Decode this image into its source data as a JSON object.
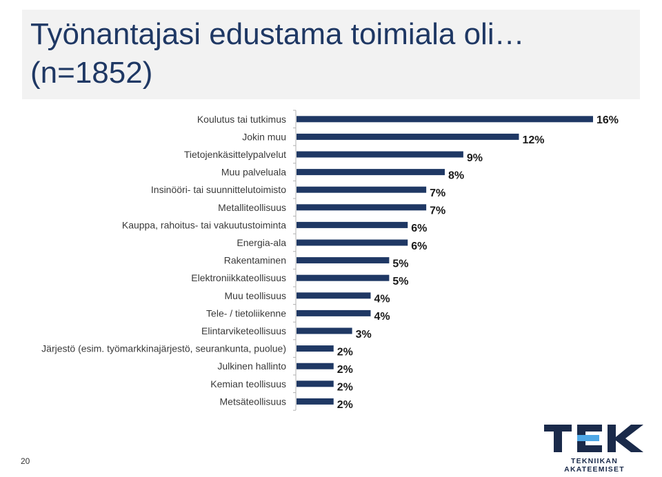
{
  "page": {
    "title_line1": "Työnantajasi edustama toimiala oli…",
    "title_line2": "(n=1852)",
    "slide_number": "20"
  },
  "logo": {
    "text": "TEK",
    "subtitle": "TEKNIIKAN AKATEEMISET",
    "colors": {
      "dark": "#1a2a4a",
      "accent": "#4ea7e6"
    }
  },
  "colors": {
    "bar": "#1f3864",
    "title": "#1f3864",
    "title_bg": "#f2f2f2"
  },
  "chart_data": {
    "type": "bar",
    "orientation": "horizontal",
    "categories": [
      "Koulutus tai tutkimus",
      "Jokin muu",
      "Tietojenkäsittelypalvelut",
      "Muu palveluala",
      "Insinööri- tai suunnittelutoimisto",
      "Metalliteollisuus",
      "Kauppa, rahoitus- tai vakuutustoiminta",
      "Energia-ala",
      "Rakentaminen",
      "Elektroniikkateollisuus",
      "Muu teollisuus",
      "Tele- / tietoliikenne",
      "Elintarviketeollisuus",
      "Järjestö (esim. työmarkkinajärjestö, seurankunta, puolue)",
      "Julkinen hallinto",
      "Kemian teollisuus",
      "Metsäteollisuus"
    ],
    "values": [
      16,
      12,
      9,
      8,
      7,
      7,
      6,
      6,
      5,
      5,
      4,
      4,
      3,
      2,
      2,
      2,
      2
    ],
    "labels": [
      "16%",
      "12%",
      "9%",
      "8%",
      "7%",
      "7%",
      "6%",
      "6%",
      "5%",
      "5%",
      "4%",
      "4%",
      "3%",
      "2%",
      "2%",
      "2%",
      "2%"
    ],
    "xlim": [
      0,
      16
    ],
    "title": "",
    "xlabel": "",
    "ylabel": "",
    "grid": false,
    "legend": "none"
  }
}
